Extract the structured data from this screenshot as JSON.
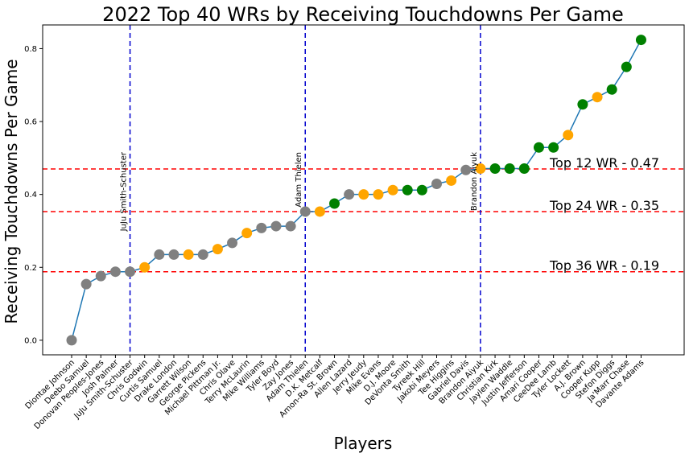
{
  "chart_data": {
    "type": "scatter",
    "title": "2022 Top 40 WRs by Receiving Touchdowns Per Game",
    "xlabel": "Players",
    "ylabel": "Receiving Touchdowns Per Game",
    "ylim": [
      -0.04,
      0.865
    ],
    "yticks": [
      "0.0",
      "0.2",
      "0.4",
      "0.6",
      "0.8"
    ],
    "grid": false,
    "colors": {
      "line": "#1f77b4",
      "tier_low": "#808080",
      "tier_mid": "#ffa500",
      "tier_high": "#008000",
      "threshold": "#ff0000",
      "marker_line": "#0000cd"
    },
    "categories": [
      "Diontae Johnson",
      "Deebo Samuel",
      "Donovan Peoples-Jones",
      "Josh Palmer",
      "JuJu Smith-Schuster",
      "Chris Godwin",
      "Curtis Samuel",
      "Drake London",
      "Garrett Wilson",
      "George Pickens",
      "Michael Pittman Jr.",
      "Chris Olave",
      "Terry McLaurin",
      "Mike Williams",
      "Tyler Boyd",
      "Zay Jones",
      "Adam Thielen",
      "D.K. Metcalf",
      "Amon-Ra St. Brown",
      "Allen Lazard",
      "Jerry Jeudy",
      "Mike Evans",
      "D.J. Moore",
      "DeVonta Smith",
      "Tyreek Hill",
      "Jakobi Meyers",
      "Tee Higgins",
      "Gabriel Davis",
      "Brandon Aiyuk",
      "Christian Kirk",
      "Jaylen Waddle",
      "Justin Jefferson",
      "Amari Cooper",
      "CeeDee Lamb",
      "Tyler Lockett",
      "A.J. Brown",
      "Cooper Kupp",
      "Stefon Diggs",
      "Ja'Marr Chase",
      "Davante Adams"
    ],
    "values": [
      0.0,
      0.154,
      0.176,
      0.188,
      0.188,
      0.2,
      0.235,
      0.235,
      0.235,
      0.235,
      0.25,
      0.267,
      0.294,
      0.308,
      0.313,
      0.313,
      0.353,
      0.353,
      0.375,
      0.4,
      0.4,
      0.4,
      0.412,
      0.412,
      0.412,
      0.429,
      0.438,
      0.467,
      0.471,
      0.471,
      0.471,
      0.471,
      0.529,
      0.529,
      0.563,
      0.647,
      0.667,
      0.688,
      0.75,
      0.824
    ],
    "point_colors": [
      "tier_low",
      "tier_low",
      "tier_low",
      "tier_low",
      "tier_low",
      "tier_mid",
      "tier_low",
      "tier_low",
      "tier_mid",
      "tier_low",
      "tier_mid",
      "tier_low",
      "tier_mid",
      "tier_low",
      "tier_low",
      "tier_low",
      "tier_low",
      "tier_mid",
      "tier_high",
      "tier_low",
      "tier_mid",
      "tier_mid",
      "tier_mid",
      "tier_high",
      "tier_high",
      "tier_low",
      "tier_mid",
      "tier_low",
      "tier_mid",
      "tier_high",
      "tier_high",
      "tier_high",
      "tier_high",
      "tier_high",
      "tier_mid",
      "tier_high",
      "tier_mid",
      "tier_high",
      "tier_high",
      "tier_high"
    ],
    "thresholds": [
      {
        "label": "Top 12 WR - 0.47",
        "value": 0.47
      },
      {
        "label": "Top 24 WR - 0.35",
        "value": 0.353
      },
      {
        "label": "Top 36 WR - 0.19",
        "value": 0.188
      }
    ],
    "markers": [
      {
        "label": "JuJu Smith-Schuster",
        "index": 4
      },
      {
        "label": "Adam Thielen",
        "index": 16
      },
      {
        "label": "Brandon Aiyuk",
        "index": 28
      }
    ]
  }
}
